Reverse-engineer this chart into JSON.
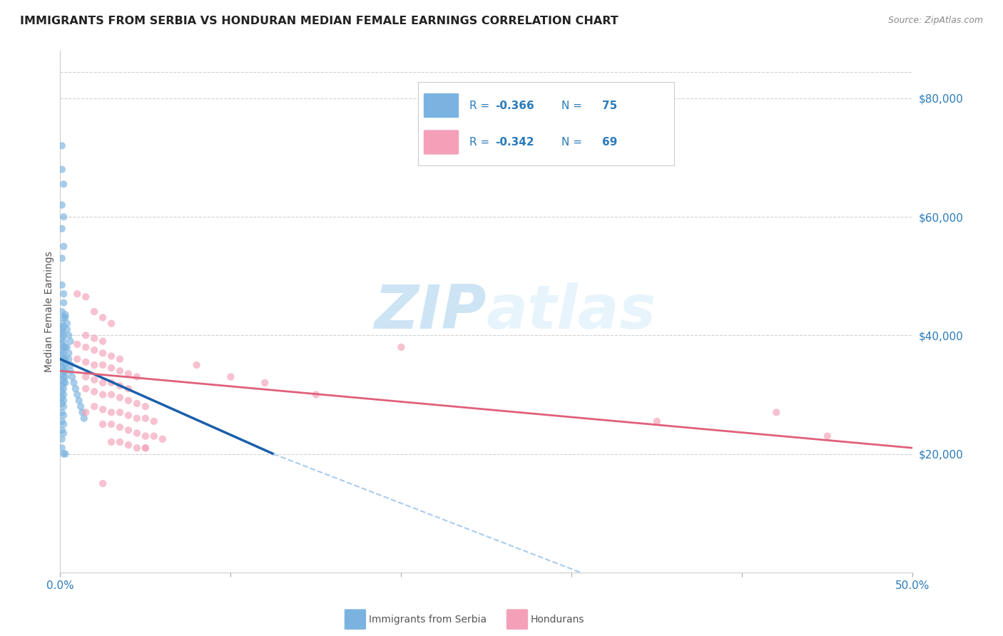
{
  "title": "IMMIGRANTS FROM SERBIA VS HONDURAN MEDIAN FEMALE EARNINGS CORRELATION CHART",
  "source": "Source: ZipAtlas.com",
  "ylabel": "Median Female Earnings",
  "ytick_labels": [
    "$20,000",
    "$40,000",
    "$60,000",
    "$80,000"
  ],
  "ytick_values": [
    20000,
    40000,
    60000,
    80000
  ],
  "ylim": [
    0,
    88000
  ],
  "xlim": [
    0,
    0.5
  ],
  "serbia_color": "#7ab3e0",
  "honduras_color": "#f4a0b8",
  "serbia_line_color": "#1a5faa",
  "serbia_dash_color": "#aaccee",
  "honduras_line_color": "#e0607a",
  "background_color": "#ffffff",
  "grid_color": "#cccccc",
  "title_color": "#222222",
  "axis_label_color": "#555555",
  "ytick_color": "#2b7bba",
  "xtick_color": "#2b7bba",
  "source_color": "#888888",
  "watermark_color": "#cde4f5",
  "legend_box_color": "#2b7bba",
  "scatter_size": 55,
  "scatter_alpha": 0.65,
  "serbia_scatter": [
    [
      0.001,
      72000
    ],
    [
      0.001,
      68000
    ],
    [
      0.002,
      65500
    ],
    [
      0.001,
      62000
    ],
    [
      0.002,
      60000
    ],
    [
      0.001,
      58000
    ],
    [
      0.002,
      55000
    ],
    [
      0.001,
      53000
    ],
    [
      0.001,
      48500
    ],
    [
      0.002,
      47000
    ],
    [
      0.002,
      45500
    ],
    [
      0.001,
      44000
    ],
    [
      0.002,
      43000
    ],
    [
      0.003,
      43500
    ],
    [
      0.001,
      42000
    ],
    [
      0.002,
      41500
    ],
    [
      0.001,
      41000
    ],
    [
      0.001,
      40500
    ],
    [
      0.002,
      40000
    ],
    [
      0.001,
      39500
    ],
    [
      0.002,
      39000
    ],
    [
      0.001,
      38500
    ],
    [
      0.002,
      38000
    ],
    [
      0.003,
      38000
    ],
    [
      0.001,
      37500
    ],
    [
      0.002,
      37000
    ],
    [
      0.001,
      36500
    ],
    [
      0.002,
      36000
    ],
    [
      0.003,
      36000
    ],
    [
      0.001,
      35500
    ],
    [
      0.002,
      35000
    ],
    [
      0.003,
      35000
    ],
    [
      0.001,
      34500
    ],
    [
      0.002,
      34000
    ],
    [
      0.003,
      34000
    ],
    [
      0.001,
      33500
    ],
    [
      0.002,
      33000
    ],
    [
      0.003,
      33000
    ],
    [
      0.001,
      32500
    ],
    [
      0.002,
      32000
    ],
    [
      0.003,
      32000
    ],
    [
      0.001,
      31500
    ],
    [
      0.002,
      31000
    ],
    [
      0.001,
      30500
    ],
    [
      0.002,
      30000
    ],
    [
      0.001,
      29500
    ],
    [
      0.002,
      29000
    ],
    [
      0.001,
      28500
    ],
    [
      0.002,
      28000
    ],
    [
      0.001,
      27000
    ],
    [
      0.002,
      26500
    ],
    [
      0.001,
      25500
    ],
    [
      0.002,
      25000
    ],
    [
      0.001,
      24000
    ],
    [
      0.002,
      23500
    ],
    [
      0.001,
      22500
    ],
    [
      0.001,
      21000
    ],
    [
      0.003,
      43000
    ],
    [
      0.004,
      42000
    ],
    [
      0.004,
      38000
    ],
    [
      0.005,
      37000
    ],
    [
      0.005,
      36000
    ],
    [
      0.006,
      35000
    ],
    [
      0.006,
      34000
    ],
    [
      0.007,
      33000
    ],
    [
      0.008,
      32000
    ],
    [
      0.009,
      31000
    ],
    [
      0.01,
      30000
    ],
    [
      0.011,
      29000
    ],
    [
      0.012,
      28000
    ],
    [
      0.013,
      27000
    ],
    [
      0.014,
      26000
    ],
    [
      0.002,
      20000
    ],
    [
      0.003,
      20000
    ],
    [
      0.004,
      41000
    ],
    [
      0.005,
      40000
    ],
    [
      0.006,
      39000
    ]
  ],
  "honduras_scatter": [
    [
      0.01,
      47000
    ],
    [
      0.015,
      46500
    ],
    [
      0.02,
      44000
    ],
    [
      0.025,
      43000
    ],
    [
      0.03,
      42000
    ],
    [
      0.015,
      40000
    ],
    [
      0.02,
      39500
    ],
    [
      0.025,
      39000
    ],
    [
      0.01,
      38500
    ],
    [
      0.015,
      38000
    ],
    [
      0.02,
      37500
    ],
    [
      0.025,
      37000
    ],
    [
      0.03,
      36500
    ],
    [
      0.035,
      36000
    ],
    [
      0.01,
      36000
    ],
    [
      0.015,
      35500
    ],
    [
      0.02,
      35000
    ],
    [
      0.025,
      35000
    ],
    [
      0.03,
      34500
    ],
    [
      0.035,
      34000
    ],
    [
      0.04,
      33500
    ],
    [
      0.045,
      33000
    ],
    [
      0.015,
      33000
    ],
    [
      0.02,
      32500
    ],
    [
      0.025,
      32000
    ],
    [
      0.03,
      32000
    ],
    [
      0.035,
      31500
    ],
    [
      0.04,
      31000
    ],
    [
      0.015,
      31000
    ],
    [
      0.02,
      30500
    ],
    [
      0.025,
      30000
    ],
    [
      0.03,
      30000
    ],
    [
      0.035,
      29500
    ],
    [
      0.04,
      29000
    ],
    [
      0.045,
      28500
    ],
    [
      0.05,
      28000
    ],
    [
      0.02,
      28000
    ],
    [
      0.025,
      27500
    ],
    [
      0.03,
      27000
    ],
    [
      0.035,
      27000
    ],
    [
      0.04,
      26500
    ],
    [
      0.045,
      26000
    ],
    [
      0.05,
      26000
    ],
    [
      0.055,
      25500
    ],
    [
      0.025,
      25000
    ],
    [
      0.03,
      25000
    ],
    [
      0.035,
      24500
    ],
    [
      0.04,
      24000
    ],
    [
      0.045,
      23500
    ],
    [
      0.05,
      23000
    ],
    [
      0.055,
      23000
    ],
    [
      0.06,
      22500
    ],
    [
      0.03,
      22000
    ],
    [
      0.035,
      22000
    ],
    [
      0.04,
      21500
    ],
    [
      0.045,
      21000
    ],
    [
      0.05,
      21000
    ],
    [
      0.015,
      27000
    ],
    [
      0.2,
      38000
    ],
    [
      0.42,
      27000
    ],
    [
      0.35,
      25500
    ],
    [
      0.05,
      21000
    ],
    [
      0.025,
      15000
    ],
    [
      0.45,
      23000
    ],
    [
      0.12,
      32000
    ],
    [
      0.15,
      30000
    ],
    [
      0.08,
      35000
    ],
    [
      0.1,
      33000
    ]
  ],
  "serbia_line": {
    "x": [
      0.0,
      0.125
    ],
    "y": [
      36000,
      20000
    ]
  },
  "serbia_dashed": {
    "x": [
      0.125,
      0.35
    ],
    "y": [
      20000,
      -5000
    ]
  },
  "honduras_line": {
    "x": [
      0.0,
      0.5
    ],
    "y": [
      34000,
      21000
    ]
  }
}
